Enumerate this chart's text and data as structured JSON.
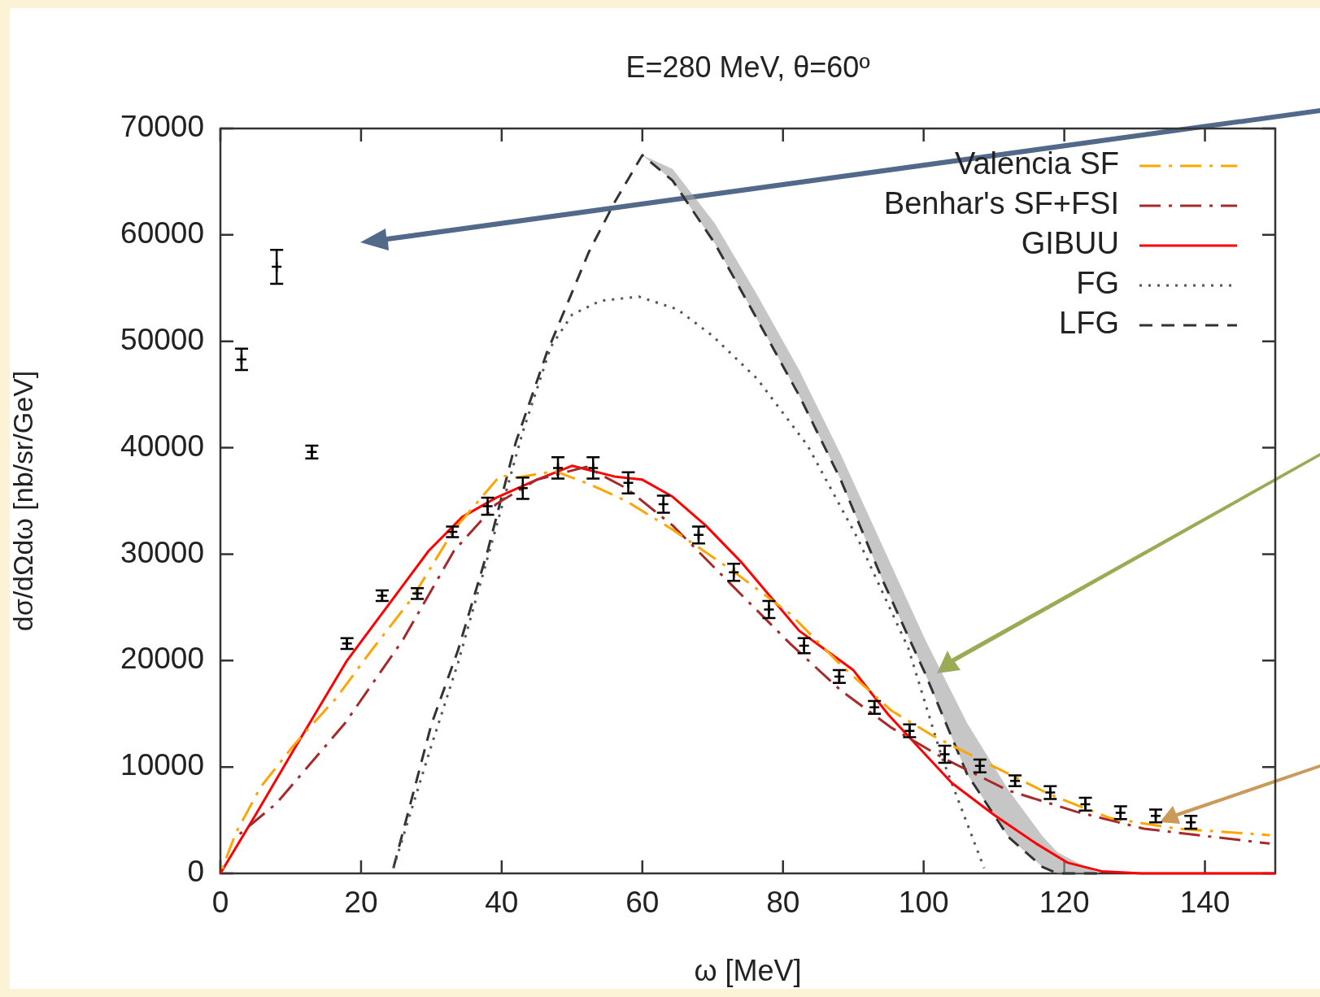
{
  "chart_data": {
    "type": "line",
    "title": "E=280 MeV, θ=60º",
    "xlabel": "ω [MeV]",
    "ylabel": "dσ/dΩdω [nb/sr/GeV]",
    "xlim": [
      0,
      150
    ],
    "xticks": [
      0,
      20,
      40,
      60,
      80,
      100,
      120,
      140
    ],
    "ylim": [
      0,
      70000
    ],
    "yticks": [
      0,
      10000,
      20000,
      30000,
      40000,
      50000,
      60000,
      70000
    ],
    "grid": false,
    "legend": "top right",
    "series": [
      {
        "name": "Valencia SF",
        "color": "#ffa500",
        "line_style": "dashdot",
        "x": [
          0,
          2.2,
          5.7,
          10.5,
          16.5,
          21.3,
          27.3,
          33.2,
          39.8,
          42.2,
          47.6,
          52.4,
          57.7,
          64.3,
          72.7,
          81,
          88.2,
          95.4,
          101.4,
          109.8,
          118,
          126.5,
          136,
          149.2
        ],
        "values": [
          0,
          3800,
          8100,
          12100,
          16500,
          20800,
          25900,
          32300,
          37400,
          37200,
          37800,
          36600,
          35000,
          32300,
          28500,
          24400,
          19600,
          15300,
          12900,
          10100,
          7400,
          5200,
          4200,
          3600
        ]
      },
      {
        "name": "Benhar's SF+FSI",
        "color": "#a52a2a",
        "line_style": "dashdot",
        "x": [
          2.2,
          8,
          17.7,
          26,
          33.2,
          39.2,
          45,
          52,
          57.7,
          64.3,
          72.7,
          81,
          88.2,
          95.4,
          102.6,
          112,
          121.7,
          131.3,
          149.2
        ],
        "values": [
          3400,
          6600,
          14100,
          22000,
          30300,
          34700,
          37000,
          38200,
          36200,
          32700,
          27100,
          21600,
          17200,
          13700,
          10900,
          7800,
          5800,
          4200,
          2800
        ]
      },
      {
        "name": "GIBUU",
        "color": "#ff0000",
        "line_style": "solid",
        "x": [
          0,
          5,
          10.5,
          18,
          26,
          29.6,
          34.4,
          39.2,
          45,
          50,
          56,
          60,
          64.3,
          69,
          74,
          82.3,
          90,
          95,
          104,
          110,
          116,
          120.5,
          125.3,
          131,
          150
        ],
        "values": [
          0,
          5500,
          11700,
          20000,
          27100,
          30300,
          33500,
          35300,
          37000,
          38300,
          37300,
          37000,
          35400,
          32700,
          29300,
          22800,
          19100,
          14900,
          8500,
          5500,
          2800,
          1000,
          200,
          0,
          0
        ]
      },
      {
        "name": "FG",
        "color": "#555555",
        "line_style": "dotted",
        "x": [
          24.6,
          30,
          33.8,
          38.9,
          43,
          47,
          50,
          54,
          59.5,
          65,
          70,
          76.3,
          83.5,
          90.6,
          97.8,
          102.6,
          108.6
        ],
        "values": [
          500,
          12000,
          19800,
          31800,
          41500,
          49500,
          52500,
          53800,
          54200,
          53000,
          50500,
          46500,
          40200,
          31500,
          21200,
          10900,
          500
        ]
      },
      {
        "name": "LFG",
        "color": "#333333",
        "line_style": "dashed",
        "x": [
          24.6,
          30,
          33.8,
          38,
          42,
          46.4,
          52.4,
          56,
          60,
          64.3,
          70.3,
          76.3,
          82.3,
          88.2,
          94.2,
          100.2,
          106.2,
          112.1,
          116.9,
          119,
          123,
          125
        ],
        "values": [
          500,
          14000,
          21000,
          30300,
          40500,
          48900,
          58400,
          63000,
          67500,
          65100,
          59200,
          52100,
          44900,
          37000,
          27500,
          18800,
          9300,
          3400,
          600,
          0,
          0,
          0
        ],
        "lower": [
          null,
          null,
          null,
          null,
          null,
          null,
          null,
          null,
          67500,
          65100,
          59200,
          52100,
          44900,
          37000,
          27500,
          18800,
          9300,
          3400,
          600,
          0,
          0,
          0
        ],
        "upper": [
          null,
          null,
          null,
          null,
          null,
          null,
          null,
          null,
          67500,
          66200,
          61100,
          54400,
          47300,
          39400,
          30700,
          22000,
          14100,
          7800,
          3500,
          2000,
          600,
          0
        ]
      },
      {
        "type": "scatter",
        "color": "#000000",
        "marker": "cross",
        "x": [
          3,
          8,
          13,
          18,
          23,
          28,
          33,
          38,
          43,
          48,
          53,
          58,
          63,
          68,
          73,
          78,
          83,
          88,
          93,
          98,
          103,
          108,
          113,
          118,
          123,
          128,
          133,
          138
        ],
        "values": [
          48300,
          57000,
          39600,
          21600,
          26100,
          26300,
          32100,
          34500,
          36200,
          38100,
          38100,
          36700,
          34700,
          31800,
          28300,
          24800,
          21400,
          18500,
          15600,
          13400,
          11200,
          10100,
          8700,
          7600,
          6500,
          5700,
          5400,
          4800
        ],
        "errors": [
          1000,
          1600,
          600,
          500,
          500,
          500,
          500,
          800,
          1000,
          1000,
          1000,
          1000,
          800,
          800,
          800,
          800,
          700,
          600,
          600,
          600,
          800,
          600,
          500,
          600,
          600,
          600,
          600,
          600
        ]
      }
    ]
  }
}
